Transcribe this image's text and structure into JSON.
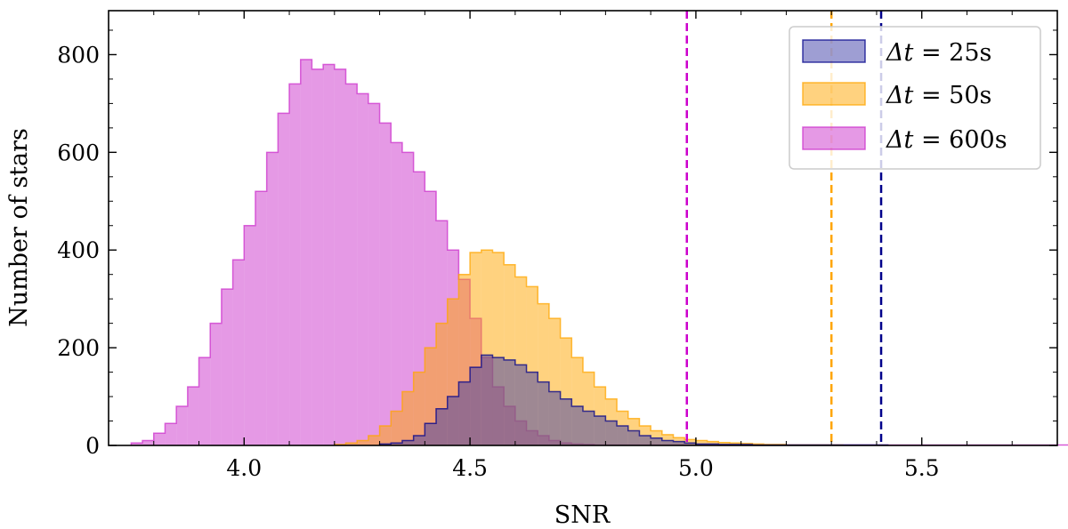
{
  "chart_data": {
    "type": "histogram",
    "xlabel": "SNR",
    "ylabel": "Number of stars",
    "xlim": [
      3.7,
      5.8
    ],
    "ylim": [
      0,
      890
    ],
    "x_ticks": [
      4.0,
      4.5,
      5.0,
      5.5
    ],
    "x_tick_labels": [
      "4.0",
      "4.5",
      "5.0",
      "5.5"
    ],
    "y_ticks": [
      0,
      200,
      400,
      600,
      800
    ],
    "y_tick_labels": [
      "0",
      "200",
      "400",
      "600",
      "800"
    ],
    "legend_position": "top-right",
    "series": [
      {
        "name": "Δt = 25s",
        "legend_math": "Δt",
        "legend_value": "= 25s",
        "color": "#00008b",
        "fill_color": "#3d3da8",
        "fill_opacity": 0.5,
        "bin_start": 4.3,
        "bin_width": 0.025,
        "counts": [
          3,
          5,
          10,
          20,
          45,
          75,
          100,
          130,
          160,
          185,
          180,
          175,
          165,
          150,
          130,
          110,
          95,
          80,
          70,
          60,
          50,
          40,
          30,
          20,
          15,
          10,
          8,
          5,
          3,
          3,
          2,
          2,
          2,
          1,
          1,
          1,
          1,
          1,
          1,
          1,
          1,
          1,
          1,
          1,
          1
        ],
        "secondary_counts": []
      },
      {
        "name": "Δt = 50s",
        "legend_math": "Δt",
        "legend_value": "= 50s",
        "color": "#ffa500",
        "fill_color": "#ffa500",
        "fill_opacity": 0.5,
        "bin_start": 4.2,
        "bin_width": 0.025,
        "counts": [
          2,
          5,
          10,
          20,
          40,
          70,
          110,
          150,
          200,
          250,
          300,
          350,
          395,
          400,
          395,
          370,
          345,
          325,
          290,
          260,
          220,
          180,
          150,
          120,
          95,
          70,
          55,
          40,
          30,
          22,
          16,
          12,
          10,
          8,
          6,
          5,
          4,
          3,
          2,
          2,
          1,
          1,
          1,
          1,
          1
        ],
        "secondary_counts": []
      },
      {
        "name": "Δt = 600s",
        "legend_math": "Δt",
        "legend_value": "= 600s",
        "color": "#cc33cc",
        "fill_color": "#cc33cc",
        "fill_opacity": 0.5,
        "bin_start": 3.75,
        "bin_width": 0.025,
        "counts": [
          5,
          10,
          25,
          45,
          80,
          120,
          180,
          250,
          320,
          380,
          450,
          520,
          600,
          680,
          740,
          790,
          770,
          780,
          770,
          740,
          720,
          700,
          660,
          620,
          600,
          560,
          520,
          460,
          400,
          340,
          260,
          180,
          120,
          80,
          50,
          30,
          20,
          10,
          5,
          3,
          2,
          1,
          1,
          1,
          1,
          1,
          1,
          1,
          1,
          1,
          1,
          1,
          1,
          1,
          1,
          1,
          1,
          1,
          1,
          1,
          1,
          1,
          1,
          1,
          1,
          1,
          1,
          1,
          1,
          1,
          1,
          1,
          1,
          1,
          1,
          1,
          1,
          1,
          1,
          1,
          1,
          1,
          1,
          1
        ],
        "secondary_counts": []
      }
    ],
    "vertical_lines": [
      {
        "x": 4.98,
        "color": "#cc00cc",
        "style": "dashed"
      },
      {
        "x": 5.3,
        "color": "#ffa500",
        "style": "dashed"
      },
      {
        "x": 5.41,
        "color": "#00008b",
        "style": "dashed"
      }
    ]
  }
}
